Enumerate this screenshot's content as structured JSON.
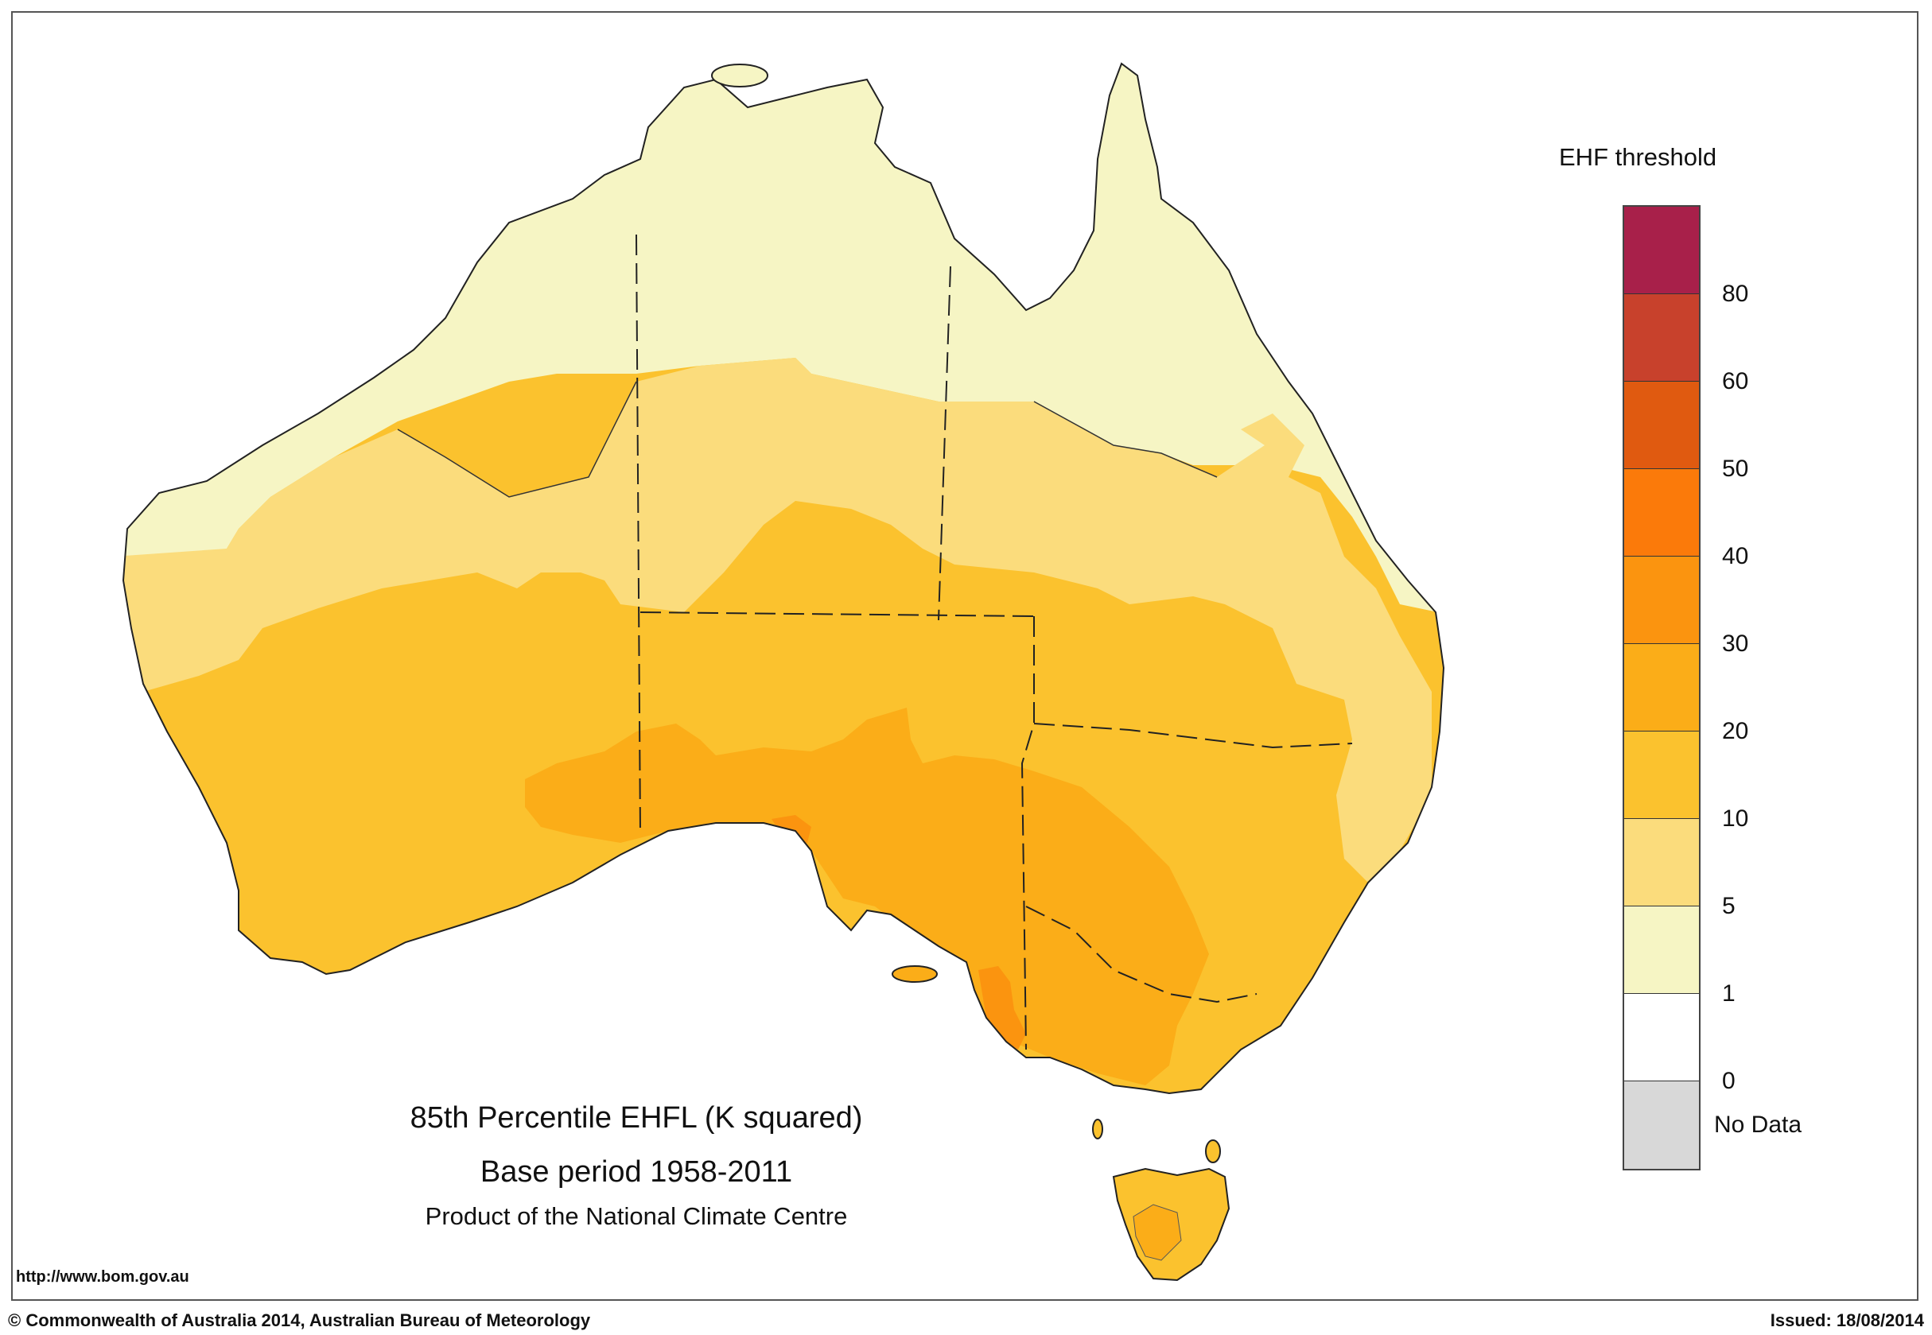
{
  "title": "85th Percentile EHFL (K squared)",
  "subtitle": "Base period 1958-2011",
  "product_line": "Product of the National Climate Centre",
  "url": "http://www.bom.gov.au",
  "copyright": "© Commonwealth of Australia 2014, Australian Bureau of Meteorology",
  "issued": "Issued: 18/08/2014",
  "legend": {
    "title": "EHF threshold",
    "colors": [
      "#a8204a",
      "#c8412c",
      "#e05a10",
      "#fb7a0a",
      "#fb940f",
      "#fbad18",
      "#fbc22e",
      "#fbdc7c",
      "#f6f5c4",
      "#ffffff",
      "#d8d8d8"
    ],
    "ticks": [
      "80",
      "60",
      "50",
      "40",
      "30",
      "20",
      "10",
      "5",
      "1",
      "0"
    ],
    "nodata": "No Data"
  },
  "map": {
    "region_colors": {
      "band_1_5": "#f6f5c4",
      "band_5_10": "#fbdc7c",
      "band_10_20": "#fbc22e",
      "band_20_30": "#fbad18",
      "band_30_40": "#fb940f",
      "band_40_50": "#fb7a0a"
    }
  }
}
